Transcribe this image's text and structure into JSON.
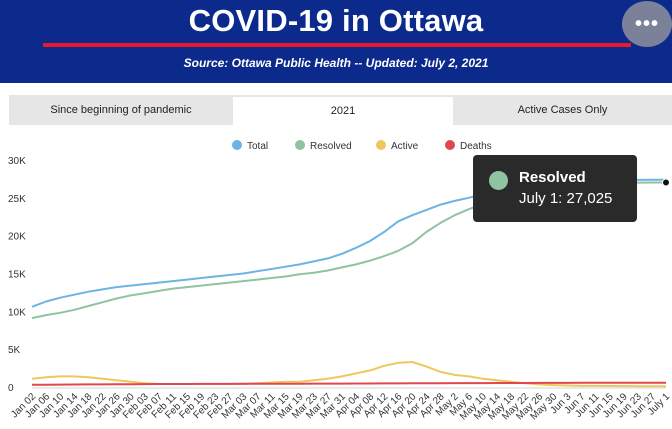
{
  "header": {
    "title": "COVID-19 in Ottawa",
    "subtitle": "Source:  Ottawa Public Health -- Updated:  July 2, 2021",
    "menu_icon": "more-horizontal-icon",
    "menu_glyph": "•••"
  },
  "tabs": [
    {
      "label": "Since beginning of pandemic",
      "active": false
    },
    {
      "label": "2021",
      "active": true
    },
    {
      "label": "Active Cases Only",
      "active": false
    }
  ],
  "tooltip": {
    "series": "Resolved",
    "label": "July 1: 27,025",
    "color": "#8fc3a1"
  },
  "chart_data": {
    "type": "line",
    "title": "",
    "xlabel": "",
    "ylabel": "",
    "ylim": [
      0,
      30000
    ],
    "legend_position": "top-center",
    "grid": false,
    "y_ticks": [
      {
        "value": 0,
        "label": "0"
      },
      {
        "value": 5000,
        "label": "5K"
      },
      {
        "value": 10000,
        "label": "10K"
      },
      {
        "value": 15000,
        "label": "15K"
      },
      {
        "value": 20000,
        "label": "20K"
      },
      {
        "value": 25000,
        "label": "25K"
      },
      {
        "value": 30000,
        "label": "30K"
      }
    ],
    "x_tick_labels": [
      "Jan 02",
      "Jan 06",
      "Jan 10",
      "Jan 14",
      "Jan 18",
      "Jan 22",
      "Jan 26",
      "Jan 30",
      "Feb 03",
      "Feb 07",
      "Feb 11",
      "Feb 15",
      "Feb 19",
      "Feb 23",
      "Feb 27",
      "Mar 03",
      "Mar 07",
      "Mar 11",
      "Mar 15",
      "Mar 19",
      "Mar 23",
      "Mar 27",
      "Mar 31",
      "Apr 04",
      "Apr 08",
      "Apr 12",
      "Apr 16",
      "Apr 20",
      "Apr 24",
      "Apr 28",
      "May 2",
      "May 6",
      "May 10",
      "May 14",
      "May 18",
      "May 22",
      "May 26",
      "May 30",
      "Jun 3",
      "Jun 7",
      "Jun 11",
      "Jun 15",
      "Jun 19",
      "Jun 23",
      "Jun 27",
      "July 1"
    ],
    "series": [
      {
        "name": "Total",
        "color": "#6cb4e4",
        "values": [
          10600,
          11300,
          11800,
          12200,
          12600,
          12900,
          13200,
          13400,
          13600,
          13800,
          14000,
          14200,
          14400,
          14600,
          14800,
          15000,
          15300,
          15600,
          15900,
          16200,
          16600,
          17000,
          17600,
          18400,
          19300,
          20500,
          21900,
          22700,
          23400,
          24100,
          24600,
          25000,
          25500,
          25900,
          26300,
          26600,
          26900,
          27100,
          27200,
          27250,
          27300,
          27320,
          27350,
          27370,
          27390,
          27400
        ]
      },
      {
        "name": "Resolved",
        "color": "#8fc3a1",
        "values": [
          9100,
          9500,
          9800,
          10200,
          10700,
          11200,
          11700,
          12100,
          12400,
          12700,
          13000,
          13200,
          13400,
          13600,
          13800,
          14000,
          14200,
          14400,
          14600,
          14900,
          15100,
          15400,
          15800,
          16200,
          16700,
          17300,
          18000,
          19000,
          20500,
          21700,
          22700,
          23500,
          24200,
          24900,
          25500,
          26000,
          26500,
          26800,
          26900,
          26950,
          26970,
          26990,
          27000,
          27010,
          27020,
          27025
        ]
      },
      {
        "name": "Active",
        "color": "#f0c75e",
        "values": [
          1100,
          1300,
          1400,
          1400,
          1300,
          1100,
          900,
          700,
          500,
          400,
          400,
          400,
          400,
          400,
          400,
          400,
          500,
          600,
          700,
          700,
          900,
          1100,
          1400,
          1800,
          2200,
          2800,
          3200,
          3300,
          2700,
          2000,
          1600,
          1400,
          1100,
          900,
          700,
          500,
          350,
          250,
          200,
          150,
          150,
          130,
          120,
          110,
          100,
          100
        ]
      },
      {
        "name": "Deaths",
        "color": "#e2474f",
        "values": [
          300,
          310,
          320,
          330,
          340,
          350,
          360,
          370,
          380,
          390,
          395,
          400,
          405,
          410,
          415,
          420,
          425,
          430,
          435,
          440,
          445,
          450,
          455,
          460,
          465,
          470,
          480,
          490,
          500,
          505,
          510,
          515,
          520,
          525,
          530,
          535,
          540,
          545,
          548,
          550,
          552,
          554,
          556,
          557,
          558,
          560
        ]
      }
    ]
  }
}
